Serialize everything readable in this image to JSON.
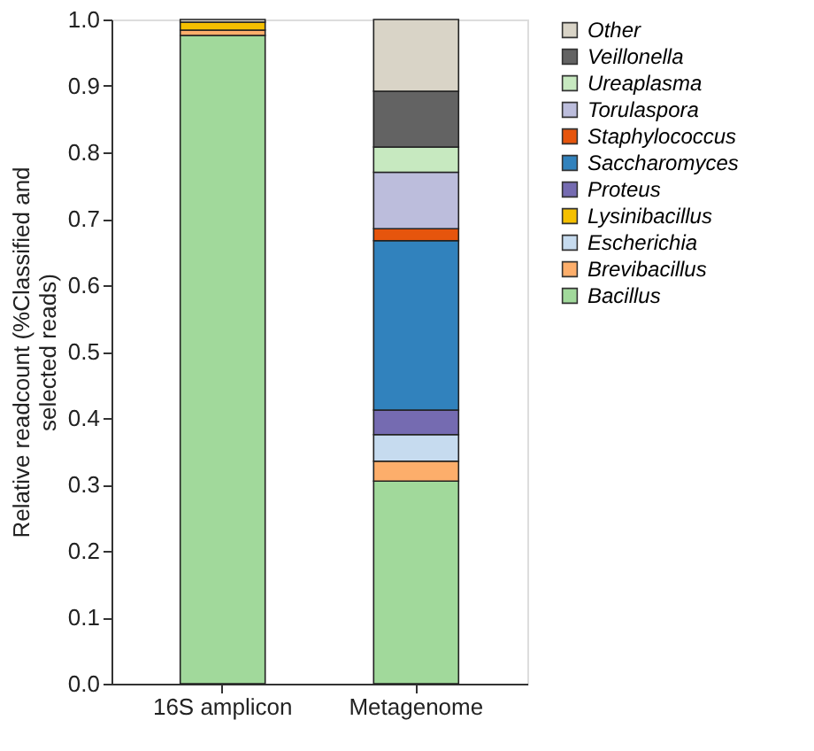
{
  "chart_data": {
    "type": "bar",
    "stacked": true,
    "ylabel": "Relative readcount (%Classified and selected reads)",
    "categories": [
      "16S amplicon",
      "Metagenome"
    ],
    "ylim": [
      0,
      1
    ],
    "yticks": [
      {
        "value": 0,
        "label": "0.0"
      },
      0.1,
      0.2,
      0.3,
      0.4,
      0.5,
      0.6,
      0.7,
      0.8,
      0.9,
      {
        "value": 1,
        "label": "1.0"
      }
    ],
    "grid": false,
    "legend": "right",
    "series": [
      {
        "name": "Bacillus",
        "color": "#a1d99b",
        "values": [
          0.976,
          0.305
        ]
      },
      {
        "name": "Brevibacillus",
        "color": "#fdae6b",
        "values": [
          0.008,
          0.03
        ]
      },
      {
        "name": "Escherichia",
        "color": "#c6dbef",
        "values": [
          null,
          0.04
        ]
      },
      {
        "name": "Lysinibacillus",
        "color": "#f5c000",
        "values": [
          0.012,
          null
        ]
      },
      {
        "name": "Proteus",
        "color": "#756bb1",
        "values": [
          null,
          0.037
        ]
      },
      {
        "name": "Saccharomyces",
        "color": "#3182bd",
        "values": [
          null,
          0.255
        ]
      },
      {
        "name": "Staphylococcus",
        "color": "#e6550d",
        "values": [
          null,
          0.018
        ]
      },
      {
        "name": "Torulaspora",
        "color": "#bcbddc",
        "values": [
          null,
          0.085
        ]
      },
      {
        "name": "Ureaplasma",
        "color": "#c7e9c0",
        "values": [
          null,
          0.038
        ]
      },
      {
        "name": "Veillonella",
        "color": "#636363",
        "values": [
          null,
          0.084
        ]
      },
      {
        "name": "Other",
        "color": "#d9d4c7",
        "values": [
          0.004,
          0.108
        ]
      }
    ]
  }
}
